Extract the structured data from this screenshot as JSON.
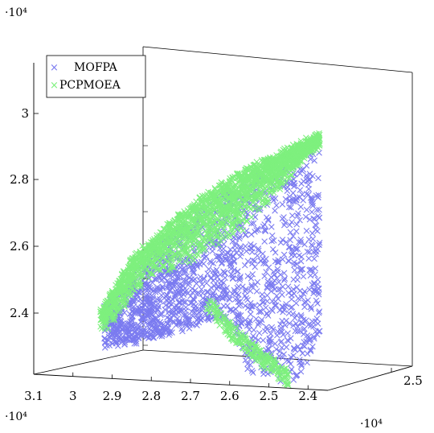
{
  "chart_data": {
    "type": "scatter",
    "projection": "3d",
    "x_tick_labels": [
      "3.1",
      "3",
      "2.9",
      "2.8",
      "2.7",
      "2.6",
      "2.5",
      "2.4"
    ],
    "x_ticks": [
      3.1,
      3.0,
      2.9,
      2.8,
      2.7,
      2.6,
      2.5,
      2.4
    ],
    "y_tick_labels": [
      "2.5"
    ],
    "y_ticks": [
      2.5
    ],
    "z_tick_labels": [
      "2.4",
      "2.6",
      "2.8",
      "3"
    ],
    "z_ticks": [
      2.4,
      2.6,
      2.8,
      3.0
    ],
    "x_multiplier": "·10⁴",
    "y_multiplier": "·10⁴",
    "z_multiplier": "·10⁴",
    "xlim": [
      3.1,
      2.35
    ],
    "zlim": [
      2.28,
      3.1
    ],
    "grid": false,
    "legend_position": "top-left",
    "marker": "×",
    "series": [
      {
        "name": "MOFPA",
        "color": "#7b7bf0",
        "points_approx": 2400,
        "region": {
          "upper_edge_z": [
            [
              2.92,
              2.5
            ],
            [
              2.84,
              2.61
            ],
            [
              2.75,
              2.72
            ],
            [
              2.65,
              2.82
            ],
            [
              2.55,
              2.9
            ],
            [
              2.45,
              2.96
            ],
            [
              2.37,
              3.0
            ]
          ],
          "lower_edge_z": [
            [
              2.92,
              2.38
            ],
            [
              2.84,
              2.4
            ],
            [
              2.74,
              2.43
            ],
            [
              2.65,
              2.47
            ],
            [
              2.6,
              2.45
            ],
            [
              2.55,
              2.32
            ],
            [
              2.48,
              2.3
            ],
            [
              2.42,
              2.3
            ],
            [
              2.37,
              2.45
            ]
          ]
        }
      },
      {
        "name": "PCPMOEA",
        "color": "#7ef07e",
        "points_approx": 2400,
        "region": {
          "upper_edge_z": [
            [
              2.93,
              2.48
            ],
            [
              2.85,
              2.64
            ],
            [
              2.76,
              2.74
            ],
            [
              2.66,
              2.84
            ],
            [
              2.56,
              2.91
            ],
            [
              2.46,
              2.97
            ],
            [
              2.37,
              3.02
            ]
          ],
          "lower_edge_z": [
            [
              2.92,
              2.42
            ],
            [
              2.84,
              2.54
            ],
            [
              2.75,
              2.61
            ],
            [
              2.66,
              2.66
            ],
            [
              2.58,
              2.72
            ],
            [
              2.48,
              2.84
            ],
            [
              2.38,
              2.98
            ]
          ],
          "tail_z": [
            [
              2.66,
              2.52
            ],
            [
              2.6,
              2.44
            ],
            [
              2.52,
              2.36
            ],
            [
              2.45,
              2.3
            ]
          ]
        }
      }
    ]
  }
}
